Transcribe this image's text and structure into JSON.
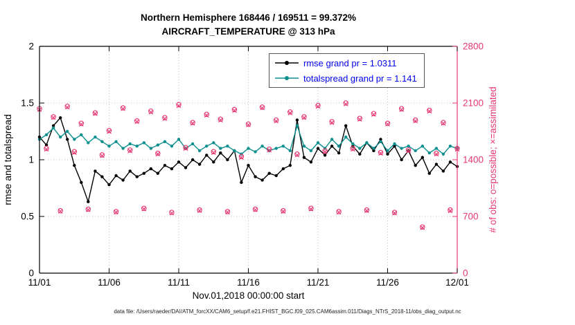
{
  "title": {
    "line1": "Northern Hemisphere 168446 / 169511 = 99.372%",
    "line2": "AIRCRAFT_TEMPERATURE @ 313 hPa"
  },
  "axes": {
    "xlabel": "Nov.01,2018 00:00:00 start"
  },
  "legend": {
    "text_color": "#0000ee",
    "items": [
      {
        "label": "rmse grand pr = 1.0311",
        "color": "#000000"
      },
      {
        "label": "totalspread grand pr = 1.141",
        "color": "#0b8f8f"
      }
    ]
  },
  "caption": "data file: /Users/raeder/DAI/ATM_forcXX/CAM6_setup/f.e21.FHIST_BGC.f09_025.CAM6assim.011/Diags_NTrS_2018-11/obs_diag_output.nc",
  "chart_data": {
    "type": "line",
    "title": "Northern Hemisphere 168446 / 169511 = 99.372% | AIRCRAFT_TEMPERATURE @ 313 hPa",
    "xlabel": "Nov.01,2018 00:00:00 start",
    "ylabel_left": "rmse and totalspread",
    "ylabel_right": "# of obs: o=possible; ×=assimilated",
    "grid": "dotted",
    "legend_position": "top-center",
    "x_start_day": 0,
    "x_end_day": 30,
    "x_step_days": 0.5,
    "x_tick_days": [
      0,
      5,
      10,
      15,
      20,
      25,
      30
    ],
    "x_tick_labels": [
      "11/01",
      "11/06",
      "11/11",
      "11/16",
      "11/21",
      "11/26",
      "12/01"
    ],
    "ylim_left": [
      0,
      2
    ],
    "y_ticks_left": [
      0,
      0.5,
      1,
      1.5,
      2
    ],
    "y_tick_labels_left": [
      "0",
      "0.5",
      "1",
      "1.5",
      "2"
    ],
    "ylim_right": [
      0,
      2800
    ],
    "y_ticks_right": [
      0,
      700,
      1400,
      2100,
      2800
    ],
    "y_tick_labels_right": [
      "0",
      "700",
      "1400",
      "2100",
      "2800"
    ],
    "axis_color_left": "#000000",
    "axis_color_right": "#e8376f",
    "series": [
      {
        "name": "rmse",
        "grand_pr": 1.0311,
        "color": "#000000",
        "axis": "left",
        "values": [
          1.2,
          1.13,
          1.3,
          1.37,
          1.18,
          0.95,
          0.8,
          0.63,
          0.9,
          0.85,
          0.78,
          0.86,
          0.82,
          0.9,
          0.85,
          0.88,
          0.92,
          0.88,
          0.95,
          0.92,
          0.98,
          0.93,
          1.0,
          0.96,
          1.04,
          0.98,
          1.06,
          1.0,
          1.08,
          0.8,
          0.95,
          0.85,
          0.82,
          0.88,
          0.86,
          0.92,
          0.95,
          1.35,
          1.02,
          0.98,
          1.1,
          1.04,
          1.12,
          1.06,
          1.3,
          1.12,
          1.05,
          1.15,
          1.08,
          1.18,
          1.05,
          1.12,
          1.0,
          1.08,
          0.95,
          1.02,
          0.88,
          0.96,
          0.9,
          0.98,
          0.94
        ]
      },
      {
        "name": "totalspread",
        "grand_pr": 1.141,
        "color": "#0b8f8f",
        "axis": "left",
        "values": [
          1.18,
          1.22,
          1.28,
          1.2,
          1.25,
          1.18,
          1.22,
          1.15,
          1.2,
          1.16,
          1.12,
          1.16,
          1.1,
          1.14,
          1.12,
          1.15,
          1.1,
          1.13,
          1.16,
          1.12,
          1.18,
          1.1,
          1.14,
          1.08,
          1.12,
          1.15,
          1.1,
          1.12,
          1.08,
          1.05,
          1.1,
          1.07,
          1.12,
          1.08,
          1.1,
          1.12,
          1.08,
          1.3,
          1.12,
          1.08,
          1.15,
          1.1,
          1.18,
          1.12,
          1.2,
          1.14,
          1.1,
          1.15,
          1.1,
          1.16,
          1.08,
          1.14,
          1.1,
          1.12,
          1.08,
          1.12,
          1.06,
          1.1,
          1.05,
          1.12,
          1.1
        ]
      }
    ],
    "obs_series": [
      {
        "name": "possible",
        "marker": "o",
        "color": "#e8376f",
        "axis": "right",
        "values": [
          2030,
          1540,
          1930,
          770,
          2060,
          1500,
          1850,
          790,
          1980,
          1460,
          1760,
          760,
          2040,
          1520,
          1880,
          800,
          2000,
          1480,
          1920,
          750,
          2080,
          1550,
          1860,
          780,
          1960,
          1500,
          1900,
          760,
          2020,
          1440,
          1840,
          790,
          2050,
          1530,
          1890,
          770,
          1990,
          1470,
          1930,
          800,
          2070,
          1510,
          1870,
          760,
          2100,
          1540,
          1910,
          780,
          1970,
          1490,
          1850,
          750,
          2030,
          1520,
          1890,
          570,
          2010,
          1480,
          1860,
          780,
          1540
        ]
      },
      {
        "name": "assimilated",
        "marker": "x",
        "color": "#e8376f",
        "axis": "right",
        "values": [
          2018,
          1529,
          1921,
          764,
          2049,
          1488,
          1839,
          783,
          1969,
          1450,
          1748,
          753,
          2031,
          1509,
          1870,
          792,
          1988,
          1470,
          1908,
          742,
          2066,
          1538,
          1850,
          772,
          1949,
          1489,
          1889,
          753,
          2008,
          1428,
          1830,
          782,
          2040,
          1519,
          1878,
          762,
          1978,
          1459,
          1920,
          791,
          2058,
          1500,
          1858,
          752,
          2088,
          1529,
          1899,
          771,
          1959,
          1479,
          1840,
          741,
          2019,
          1509,
          1878,
          562,
          1999,
          1469,
          1849,
          770,
          1528
        ]
      }
    ]
  }
}
